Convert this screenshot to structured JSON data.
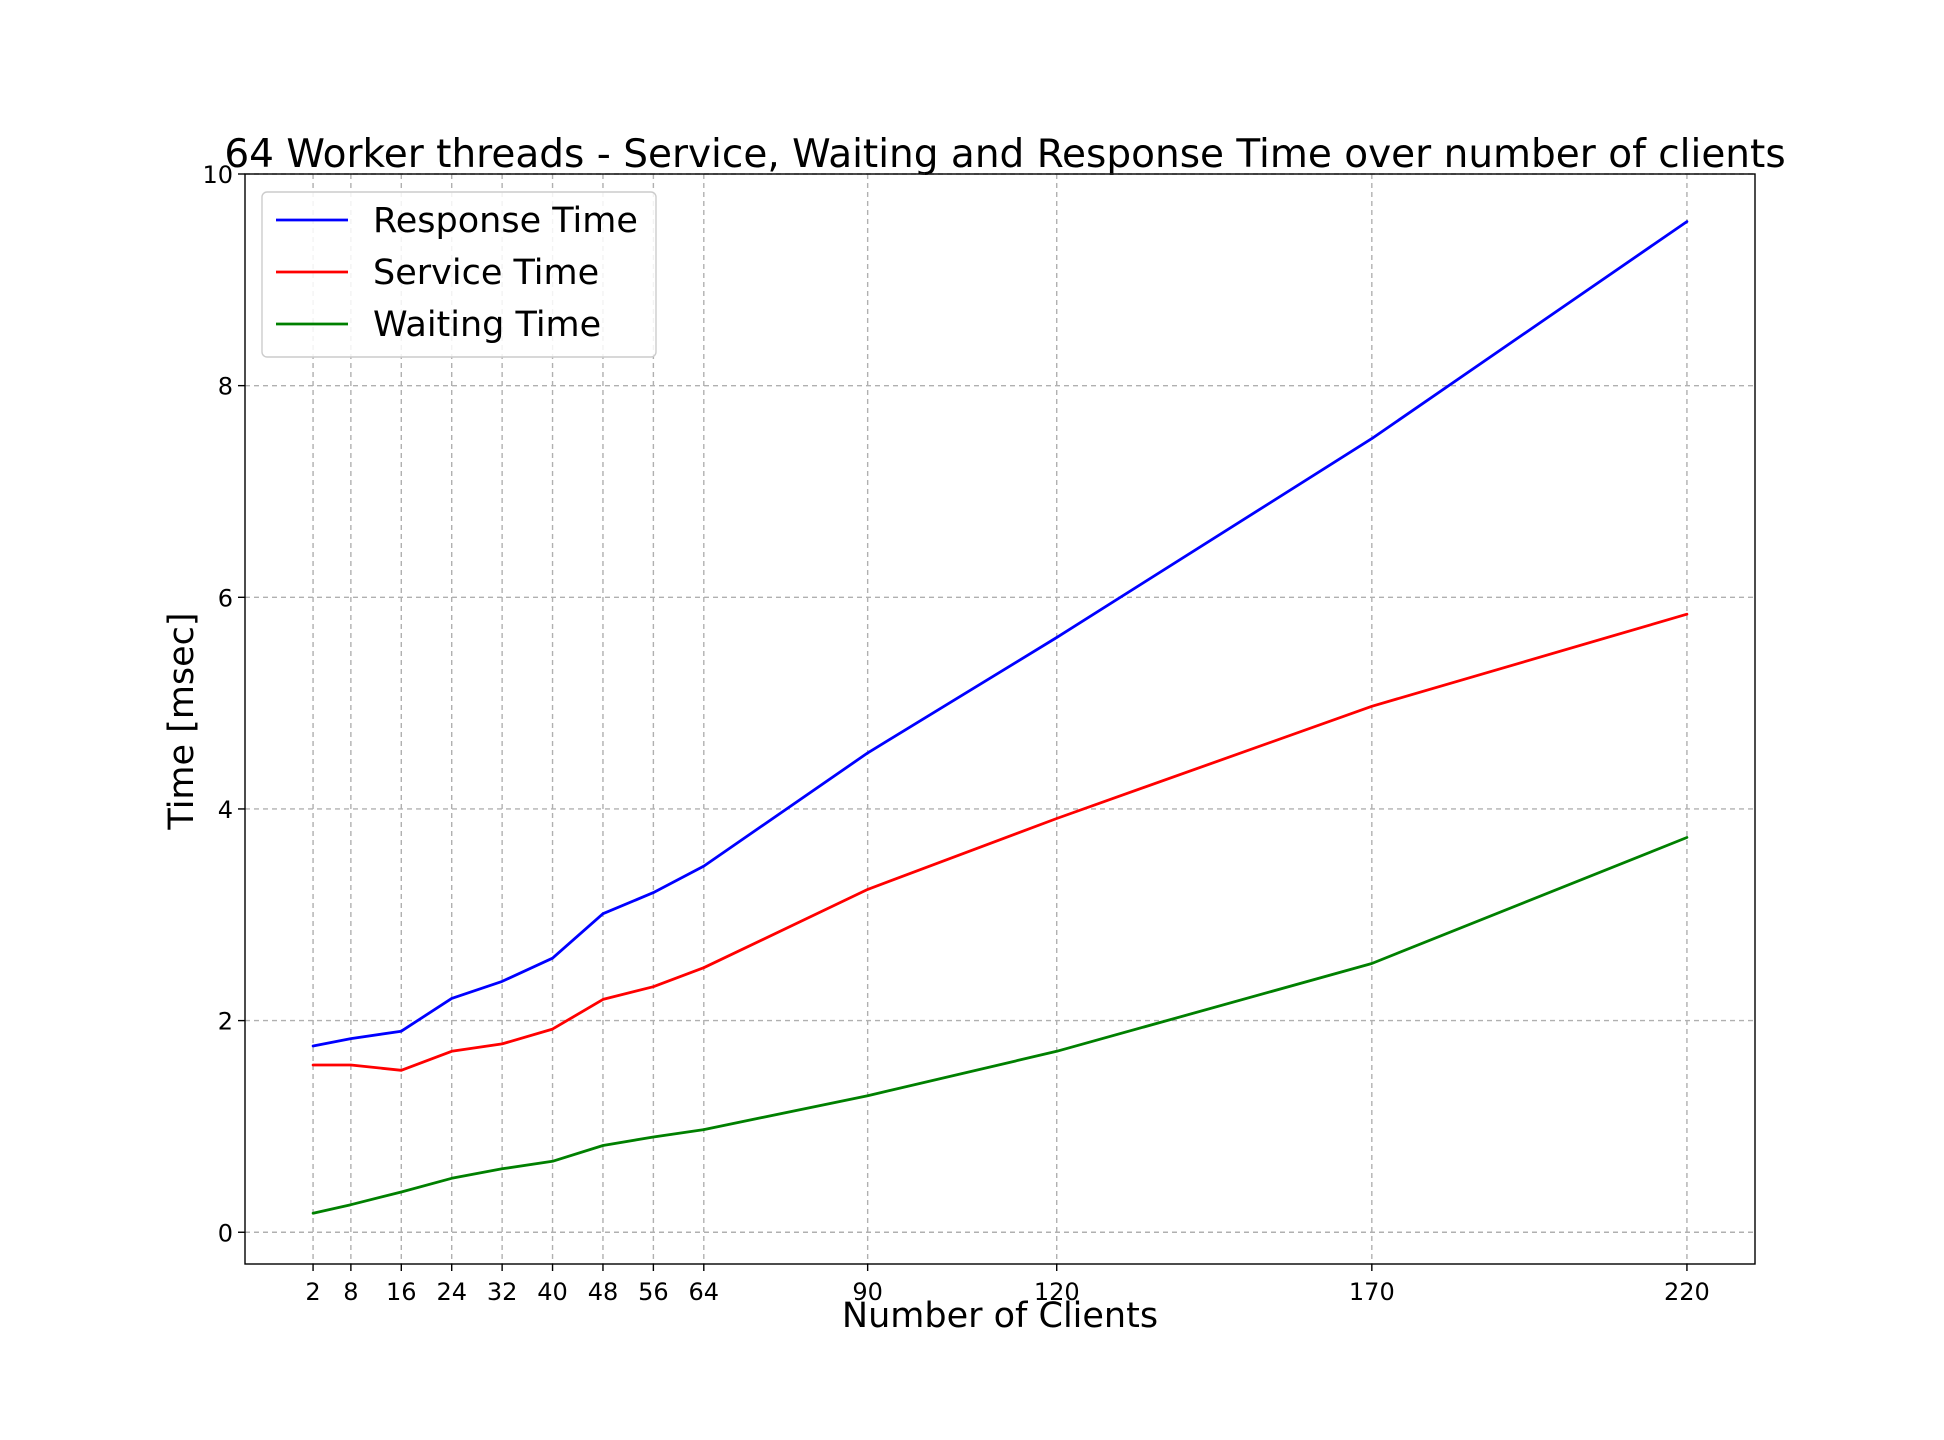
{
  "chart_data": {
    "type": "line",
    "title": "64 Worker threads - Service, Waiting and Response Time over number of clients",
    "xlabel": "Number of Clients",
    "ylabel": "Time [msec]",
    "x": [
      2,
      8,
      16,
      24,
      32,
      40,
      48,
      56,
      64,
      90,
      120,
      170,
      220
    ],
    "x_tick_labels": [
      "2",
      "8",
      "16",
      "24",
      "32",
      "40",
      "48",
      "56",
      "64",
      "90",
      "120",
      "170",
      "220"
    ],
    "y_ticks": [
      0,
      2,
      4,
      6,
      8,
      10
    ],
    "y_tick_labels": [
      "0",
      "2",
      "4",
      "6",
      "8",
      "10"
    ],
    "xlim": [
      -8.8,
      230.8
    ],
    "ylim": [
      -0.3,
      10
    ],
    "grid": true,
    "legend_position": "top-left",
    "series": [
      {
        "name": "Response Time",
        "color": "#0000ff",
        "values": [
          1.76,
          1.83,
          1.9,
          2.21,
          2.37,
          2.59,
          3.01,
          3.21,
          3.46,
          4.53,
          5.62,
          7.5,
          9.55
        ]
      },
      {
        "name": "Service Time",
        "color": "#ff0000",
        "values": [
          1.58,
          1.58,
          1.53,
          1.71,
          1.78,
          1.92,
          2.2,
          2.32,
          2.5,
          3.24,
          3.91,
          4.97,
          5.84
        ]
      },
      {
        "name": "Waiting Time",
        "color": "#008000",
        "values": [
          0.18,
          0.26,
          0.38,
          0.51,
          0.6,
          0.67,
          0.82,
          0.9,
          0.97,
          1.29,
          1.71,
          2.54,
          3.73
        ]
      }
    ]
  }
}
